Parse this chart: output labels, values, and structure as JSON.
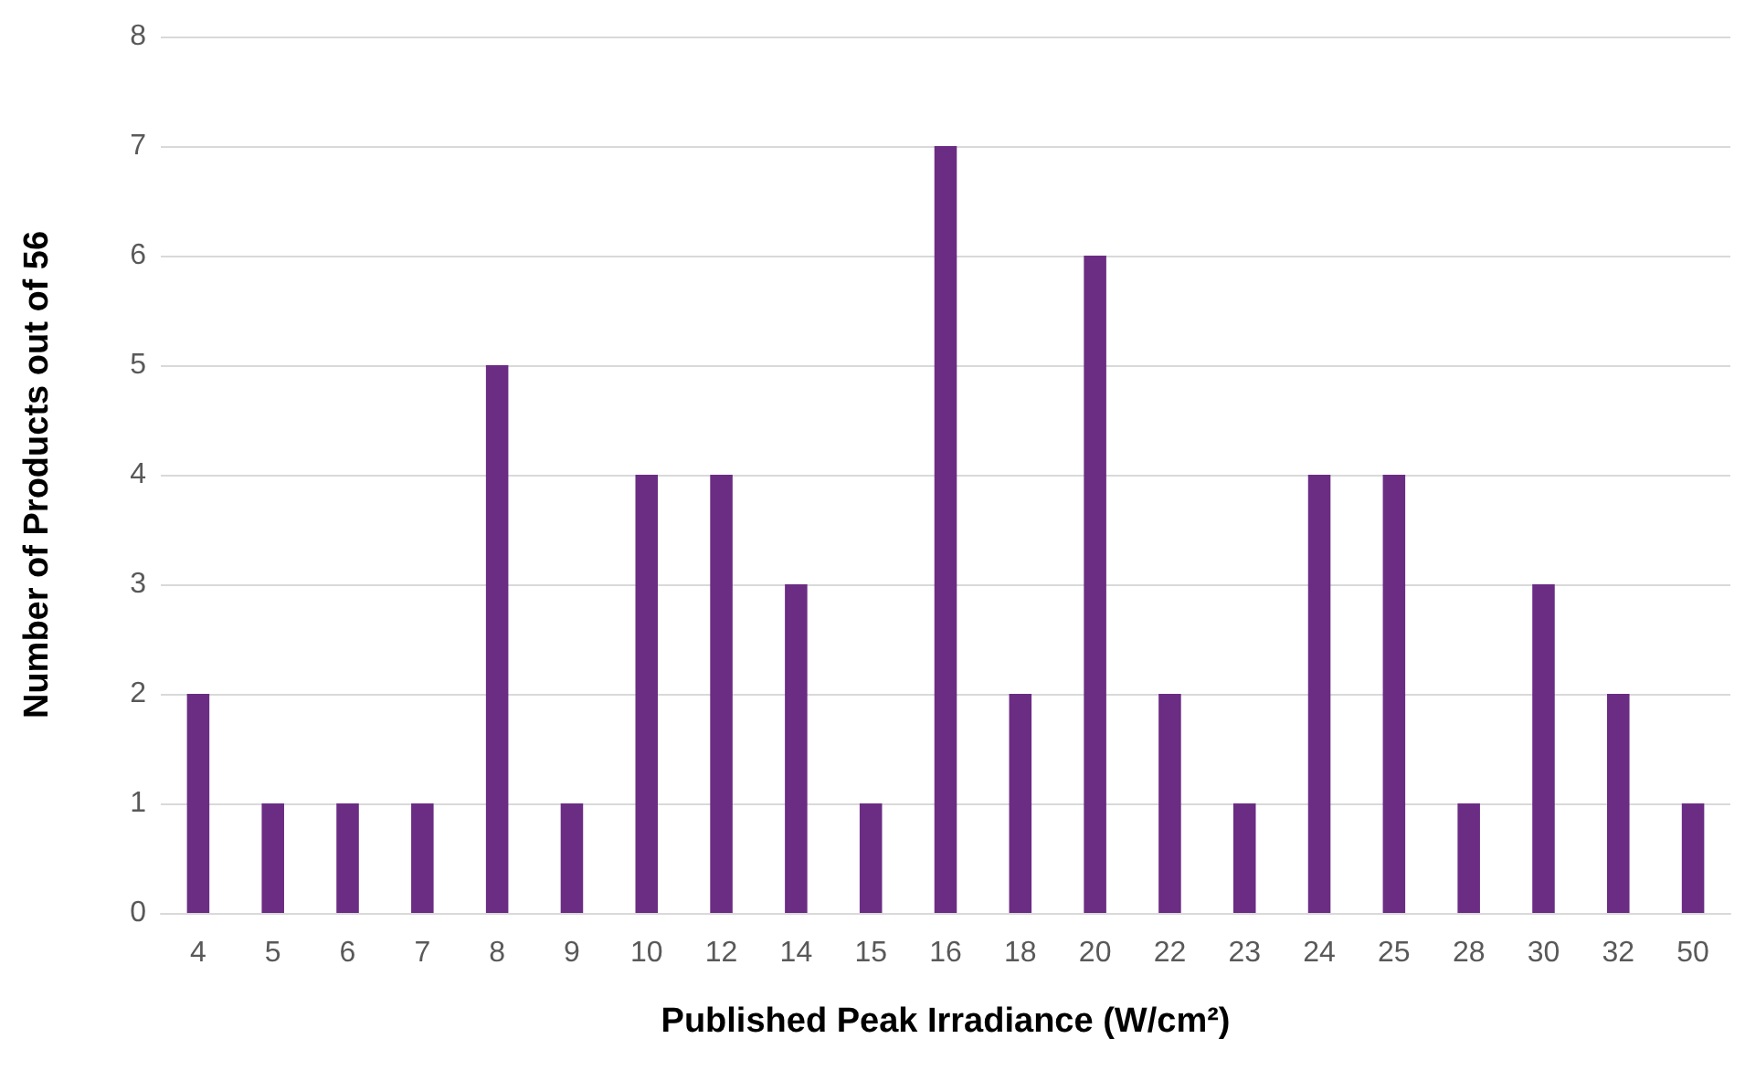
{
  "chart_data": {
    "type": "bar",
    "xlabel": "Published Peak Irradiance (W/cm²)",
    "ylabel": "Number of Products out of 56",
    "categories": [
      "4",
      "5",
      "6",
      "7",
      "8",
      "9",
      "10",
      "12",
      "14",
      "15",
      "16",
      "18",
      "20",
      "22",
      "23",
      "24",
      "25",
      "28",
      "30",
      "32",
      "50"
    ],
    "values": [
      2,
      1,
      1,
      1,
      5,
      1,
      4,
      4,
      3,
      1,
      7,
      2,
      6,
      2,
      1,
      4,
      4,
      1,
      3,
      2,
      1
    ],
    "color": "#6b2c84",
    "ylim": [
      0,
      8
    ],
    "yticks": [
      0,
      1,
      2,
      3,
      4,
      5,
      6,
      7,
      8
    ],
    "grid": "y"
  }
}
